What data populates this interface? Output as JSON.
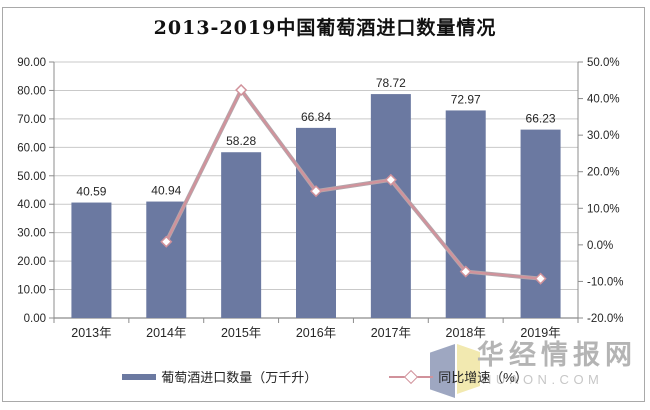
{
  "chart_data": {
    "type": "combo-bar-line",
    "title": "2013-2019中国葡萄酒进口数量情况",
    "categories": [
      "2013年",
      "2014年",
      "2015年",
      "2016年",
      "2017年",
      "2018年",
      "2019年"
    ],
    "series": [
      {
        "name": "葡萄酒进口数量（万千升）",
        "type": "bar",
        "axis": "left",
        "values": [
          40.59,
          40.94,
          58.28,
          66.84,
          78.72,
          72.97,
          66.23
        ],
        "data_labels": [
          "40.59",
          "40.94",
          "58.28",
          "66.84",
          "78.72",
          "72.97",
          "66.23"
        ],
        "color": "#6B79A1"
      },
      {
        "name": "同比增速（%）",
        "type": "line",
        "axis": "right",
        "values": [
          null,
          0.86,
          42.35,
          14.69,
          17.77,
          -7.3,
          -9.24
        ],
        "color": "#D1929B",
        "marker": "diamond-white"
      }
    ],
    "left_axis": {
      "min": 0,
      "max": 90,
      "tick_values": [
        0,
        10,
        20,
        30,
        40,
        50,
        60,
        70,
        80,
        90
      ],
      "tick_labels": [
        "0.00",
        "10.00",
        "20.00",
        "30.00",
        "40.00",
        "50.00",
        "60.00",
        "70.00",
        "80.00",
        "90.00"
      ]
    },
    "right_axis": {
      "min": -20,
      "max": 50,
      "tick_values": [
        -20,
        -10,
        0,
        10,
        20,
        30,
        40,
        50
      ],
      "tick_labels": [
        "-20.0%",
        "-10.0%",
        "0.0%",
        "10.0%",
        "20.0%",
        "30.0%",
        "40.0%",
        "50.0%"
      ]
    },
    "grid": true,
    "legend_position": "bottom"
  },
  "legend": {
    "items": [
      {
        "label": "葡萄酒进口数量（万千升）",
        "swatch": "bar"
      },
      {
        "label": "同比增速（%）",
        "swatch": "line-diamond"
      }
    ]
  },
  "watermark": {
    "name": "华经情报网",
    "domain": "HUAON.COM",
    "logo": "huaon-open-book"
  },
  "colors": {
    "bar": "#6B79A1",
    "line": "#D1929B",
    "line_halo": "#B3A6AB",
    "marker_fill": "#FFFFFF",
    "grid": "#C9C9C9",
    "axis": "#8C8C8C",
    "text": "#262626",
    "watermark_name": "#B4B4B4",
    "watermark_domain": "#C7C7C7",
    "logo_blue": "#99A3BE",
    "logo_yellow": "#F2E8AC"
  }
}
